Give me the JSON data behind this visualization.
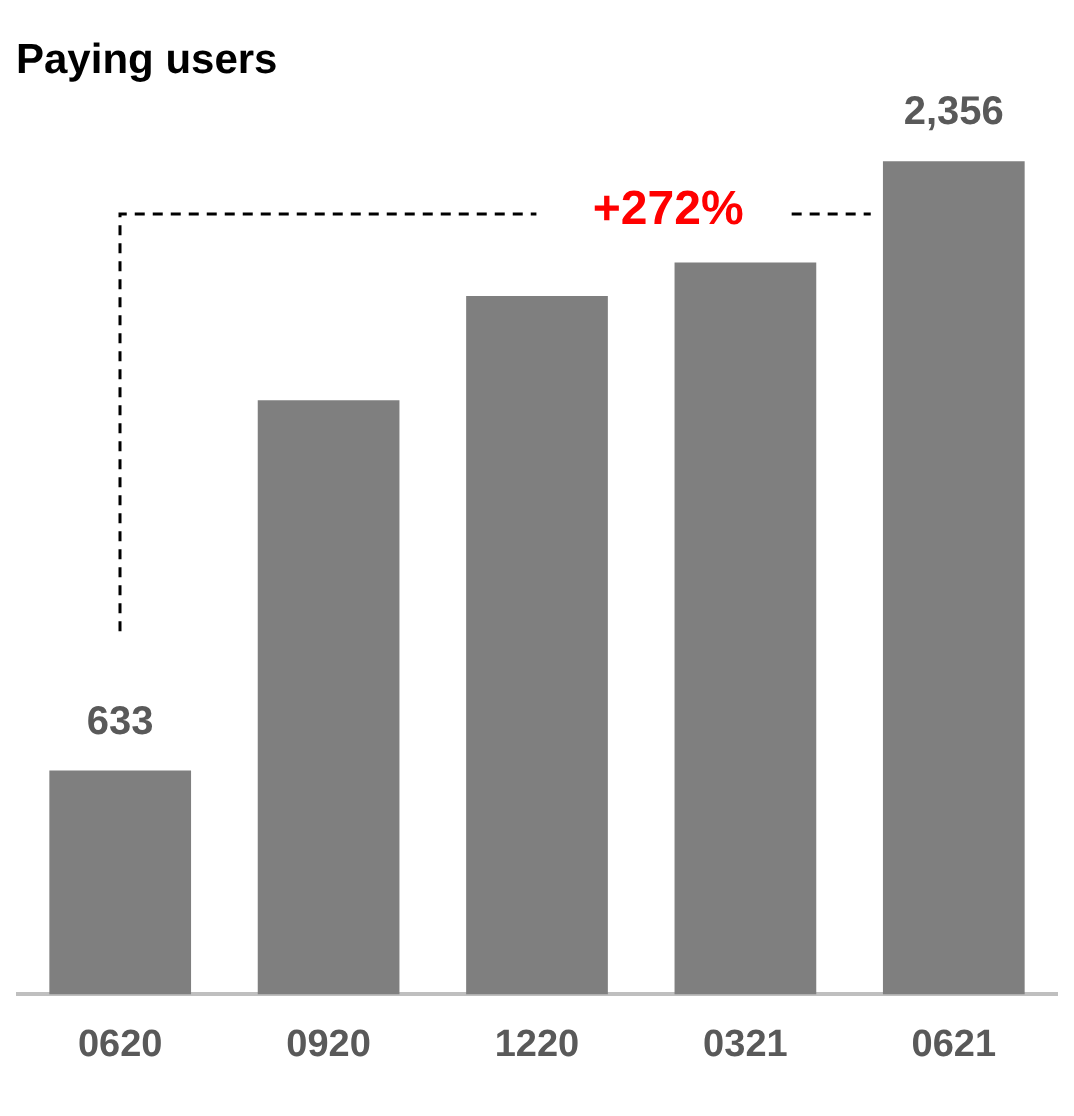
{
  "chart_data": {
    "type": "bar",
    "title": "Paying users",
    "categories": [
      "0620",
      "0920",
      "1220",
      "0321",
      "0621"
    ],
    "values": [
      633,
      1680,
      1975,
      2070,
      2356
    ],
    "value_labels": [
      "633",
      null,
      null,
      null,
      "2,356"
    ],
    "color": "#7f7f7f",
    "annotations": [
      "+272%"
    ],
    "grid": false,
    "legend": false,
    "tick_labels": "x"
  }
}
